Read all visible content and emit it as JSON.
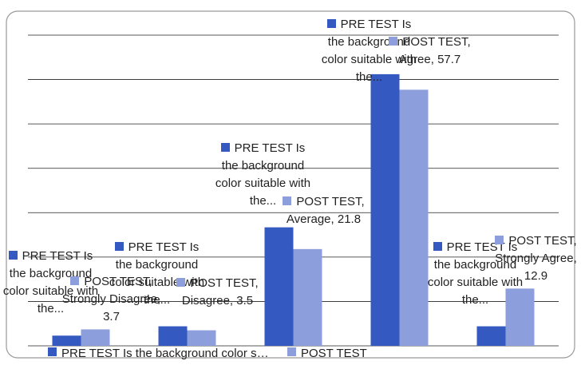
{
  "chart_data": {
    "type": "bar",
    "categories": [
      "Strongly Disagree",
      "Disagree",
      "Average",
      "Agree",
      "Strongly Agree"
    ],
    "series": [
      {
        "name": "PRE TEST Is the background color suitable with the application of this apps?",
        "color": "#3459c0",
        "values": [
          2.3,
          4.4,
          26.7,
          61.2,
          4.4
        ],
        "value_labels": [
          "PRE TEST Is the background color suitable with the...",
          "PRE TEST Is the background color suitable with the...",
          "PRE TEST Is the background color suitable with the...",
          "PRE TEST Is the background color suitable with the...",
          "PRE TEST Is the background color suitable with the..."
        ]
      },
      {
        "name": "POST TEST",
        "color": "#8d9edd",
        "values": [
          3.7,
          3.5,
          21.8,
          57.7,
          12.9
        ],
        "value_labels": [
          "POST TEST, Strongly Disagree, 3.7",
          "POST TEST, Disagree, 3.5",
          "POST TEST, Average, 21.8",
          "POST TEST, Agree, 57.7",
          "POST TEST, Strongly Agree, 12.9"
        ]
      }
    ],
    "ylim": [
      0,
      70
    ],
    "yticks": [
      0,
      10,
      20,
      30,
      40,
      50,
      60,
      70
    ],
    "grid": true,
    "legend": "bottom"
  }
}
